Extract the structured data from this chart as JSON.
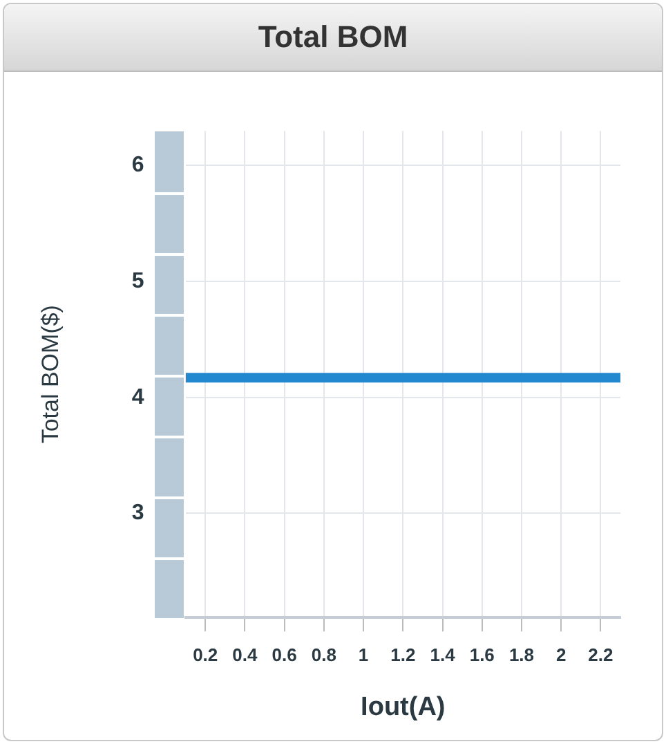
{
  "chart_data": {
    "type": "line",
    "title": "Total BOM",
    "xlabel": "Iout(A)",
    "ylabel": "Total BOM($)",
    "x": [
      0.1,
      2.3
    ],
    "series": [
      {
        "color": "#2288d0",
        "values": [
          4.17,
          4.17
        ]
      }
    ],
    "xlim": [
      0.1,
      2.3
    ],
    "xticks": [
      0.2,
      0.4,
      0.6,
      0.8,
      1,
      1.2,
      1.4,
      1.6,
      1.8,
      2,
      2.2
    ],
    "ylim": [
      2.1,
      6.3
    ],
    "yticks": [
      3,
      4,
      5,
      6
    ],
    "grid": true,
    "legend": false,
    "marker": "none",
    "line_style": "solid"
  }
}
